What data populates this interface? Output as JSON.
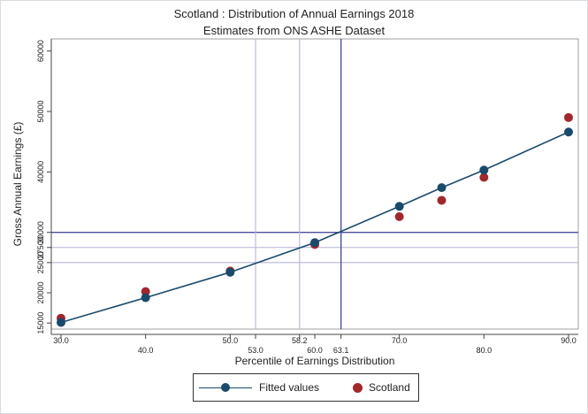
{
  "chart_data": {
    "type": "scatter",
    "title": "Scotland : Distribution of Annual Earnings 2018",
    "subtitle": "Estimates from ONS ASHE Dataset",
    "xlabel": "Percentile of Earnings Distribution",
    "ylabel": "Gross Annual Earnings (£)",
    "xlim": [
      30,
      90
    ],
    "ylim": [
      14000,
      62000
    ],
    "x_ticks": [
      {
        "value": 30,
        "label": "30.0",
        "row": 0
      },
      {
        "value": 40,
        "label": "40.0",
        "row": 1
      },
      {
        "value": 50,
        "label": "50.0",
        "row": 0
      },
      {
        "value": 53,
        "label": "53.0",
        "row": 1
      },
      {
        "value": 58.2,
        "label": "58.2",
        "row": 0
      },
      {
        "value": 60,
        "label": "60.0",
        "row": 1
      },
      {
        "value": 63.1,
        "label": "63.1",
        "row": 1
      },
      {
        "value": 70,
        "label": "70.0",
        "row": 0
      },
      {
        "value": 80,
        "label": "80.0",
        "row": 1
      },
      {
        "value": 90,
        "label": "90.0",
        "row": 0
      }
    ],
    "y_ticks": [
      {
        "value": 15000,
        "label": "15000"
      },
      {
        "value": 20000,
        "label": "20000"
      },
      {
        "value": 25000,
        "label": "25000"
      },
      {
        "value": 27500,
        "label": "27500"
      },
      {
        "value": 30000,
        "label": "30000"
      },
      {
        "value": 40000,
        "label": "40000"
      },
      {
        "value": 50000,
        "label": "50000"
      },
      {
        "value": 60000,
        "label": "60000"
      }
    ],
    "vertical_reference_lines": [
      {
        "x": 53.0,
        "style": "light"
      },
      {
        "x": 58.2,
        "style": "light"
      },
      {
        "x": 63.1,
        "style": "dark"
      }
    ],
    "horizontal_reference_lines": [
      {
        "y": 25000,
        "style": "light"
      },
      {
        "y": 27500,
        "style": "light"
      },
      {
        "y": 30000,
        "style": "dark"
      }
    ],
    "series": [
      {
        "name": "Fitted values",
        "kind": "line-with-markers",
        "color": "#1a4a6b",
        "x": [
          30,
          40,
          50,
          60,
          70,
          75,
          80,
          90
        ],
        "y": [
          15100,
          19200,
          23400,
          28300,
          34300,
          37400,
          40300,
          46600
        ]
      },
      {
        "name": "Scotland",
        "kind": "markers",
        "color": "#a0282d",
        "x": [
          30,
          40,
          50,
          60,
          70,
          75,
          80,
          90
        ],
        "y": [
          15800,
          20200,
          23600,
          28000,
          32600,
          35300,
          39100,
          49000
        ]
      }
    ],
    "grid": false,
    "legend_position": "bottom-center"
  },
  "colors": {
    "axis": "#444444",
    "ref_light": "#b8b4d8",
    "ref_dark": "#4a4f9e"
  }
}
